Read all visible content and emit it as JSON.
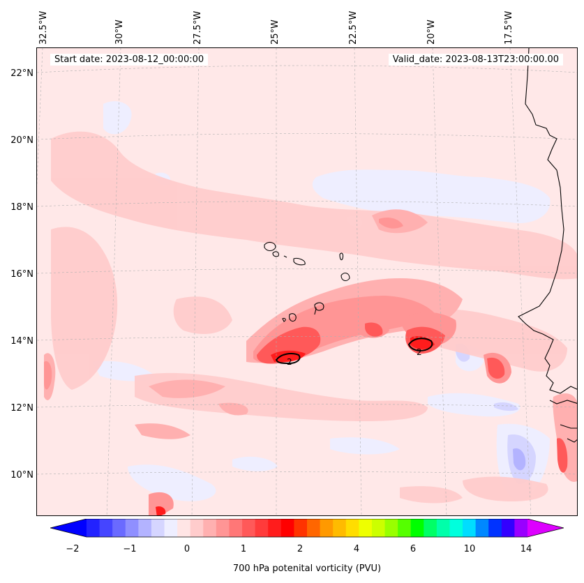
{
  "map": {
    "lon_labels": [
      "32.5°W",
      "30°W",
      "27.5°W",
      "25°W",
      "22.5°W",
      "20°W",
      "17.5°W"
    ],
    "lat_labels": [
      "22°N",
      "20°N",
      "18°N",
      "16°N",
      "14°N",
      "12°N",
      "10°N"
    ],
    "start_date": "Start date: 2023-08-12_00:00:00",
    "valid_date": "Valid_date: 2023-08-13T23:00:00.00",
    "contour_label": "2",
    "colors": {
      "background": "#ffe8e8",
      "coast": "#000000",
      "grid": "#b0b0b0"
    }
  },
  "colorbar": {
    "tick_labels": [
      "−2",
      "−1",
      "0",
      "1",
      "2",
      "4",
      "6",
      "10",
      "14"
    ],
    "label": "700 hPa potenital vorticity (PVU)",
    "colors": [
      "#0000ff",
      "#2222ff",
      "#4545ff",
      "#6a6aff",
      "#8f8fff",
      "#b3b3ff",
      "#d5d5ff",
      "#eeeeff",
      "#ffe5e5",
      "#ffcccc",
      "#ffb0b0",
      "#ff9595",
      "#ff7777",
      "#ff5959",
      "#ff3b3b",
      "#ff1c1c",
      "#ff0000",
      "#ff3300",
      "#ff6600",
      "#ff9900",
      "#ffbb00",
      "#ffdd00",
      "#eeff00",
      "#ccff00",
      "#99ff00",
      "#55ff00",
      "#00ff00",
      "#00ff66",
      "#00ffaa",
      "#00ffdd",
      "#00ddff",
      "#0088ff",
      "#0033ff",
      "#3300ff",
      "#9900ff",
      "#dd00ff"
    ]
  }
}
